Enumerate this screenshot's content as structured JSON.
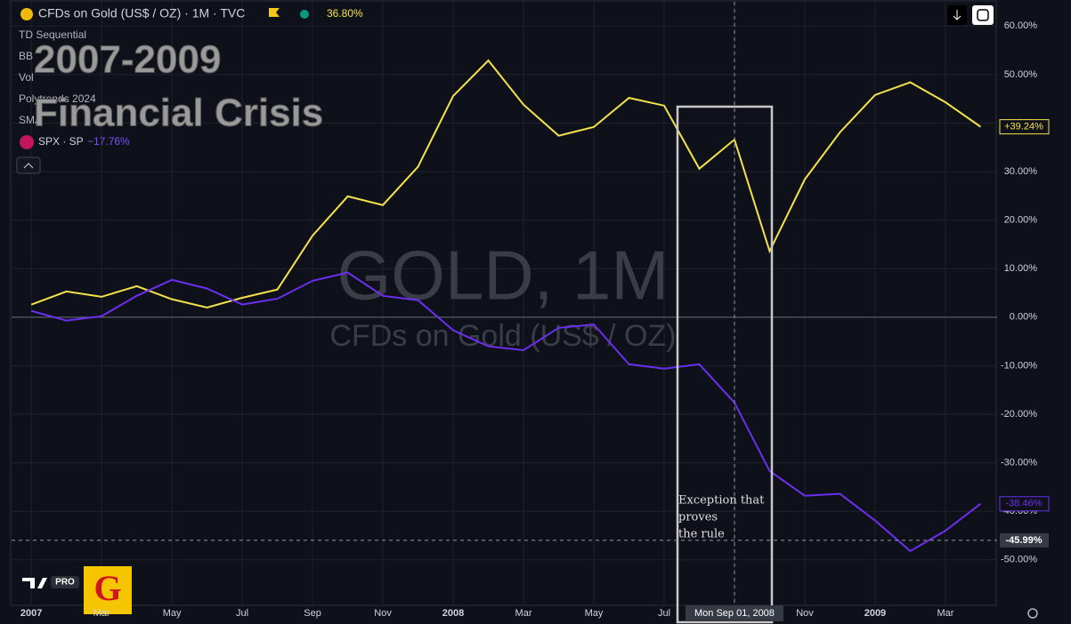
{
  "chart_data": {
    "type": "line",
    "header": {
      "change": "36.80%"
    },
    "indicators": [
      "TD Sequential",
      "BB",
      "Vol",
      "Polytrends 2024",
      "SMA"
    ],
    "overlay_title": [
      "2007-2009",
      "Financial Crisis"
    ],
    "watermark": {
      "symbol": "GOLD, 1M",
      "description": "CFDs on Gold (US$ / OZ)"
    },
    "annotation": [
      "Exception that",
      "proves",
      "the rule"
    ],
    "logo": {
      "badge": "PRO",
      "letter": "G"
    },
    "x": [
      0,
      1,
      2,
      3,
      4,
      5,
      6,
      7,
      8,
      9,
      10,
      11,
      12,
      13,
      14,
      15,
      16,
      17,
      18,
      19,
      20,
      21,
      22,
      23,
      24,
      25,
      26,
      27
    ],
    "xlim": [
      -0.56,
      27.47
    ],
    "xticks": [
      {
        "value": 0,
        "label": "2007"
      },
      {
        "value": 2,
        "label": "Mar"
      },
      {
        "value": 4,
        "label": "May"
      },
      {
        "value": 6,
        "label": "Jul"
      },
      {
        "value": 8,
        "label": "Sep"
      },
      {
        "value": 10,
        "label": "Nov"
      },
      {
        "value": 12,
        "label": "2008"
      },
      {
        "value": 14,
        "label": "Mar"
      },
      {
        "value": 16,
        "label": "May"
      },
      {
        "value": 18,
        "label": "Jul"
      },
      {
        "value": 20,
        "label": "Sep"
      },
      {
        "value": 22,
        "label": "Nov"
      },
      {
        "value": 24,
        "label": "2009"
      },
      {
        "value": 26,
        "label": "Mar"
      }
    ],
    "ylim": [
      -59.2,
      65
    ],
    "yticks": [
      {
        "value": -50,
        "label": "-50.00%"
      },
      {
        "value": -40,
        "label": "-40.00%"
      },
      {
        "value": -30,
        "label": "-30.00%"
      },
      {
        "value": -20,
        "label": "-20.00%"
      },
      {
        "value": -10,
        "label": "-10.00%"
      },
      {
        "value": 0,
        "label": "0.00%"
      },
      {
        "value": 10,
        "label": "10.00%"
      },
      {
        "value": 20,
        "label": "20.00%"
      },
      {
        "value": 30,
        "label": "30.00%"
      },
      {
        "value": 40,
        "label": "40.00%"
      },
      {
        "value": 50,
        "label": "50.00%"
      },
      {
        "value": 60,
        "label": "60.00%"
      }
    ],
    "grid": true,
    "baseline": 0,
    "series": [
      {
        "name": "CFDs on Gold (US$ / OZ) · 1M · TVC",
        "color": "#f5e24a",
        "last_label": "+39.24%",
        "values": [
          2.6,
          5.3,
          4.2,
          6.4,
          3.7,
          2.0,
          4.0,
          5.7,
          16.8,
          24.9,
          23.1,
          31.0,
          45.6,
          52.9,
          43.8,
          37.4,
          39.2,
          45.2,
          43.6,
          30.6,
          36.6,
          13.6,
          28.4,
          38.1,
          45.8,
          48.4,
          44.3,
          39.24
        ]
      },
      {
        "name": "SPX · SP",
        "color": "#6b2ff0",
        "change": "−17.76%",
        "last_label": "-38.46%",
        "values": [
          1.3,
          -0.7,
          0.2,
          4.4,
          7.7,
          5.9,
          2.6,
          3.8,
          7.5,
          9.2,
          4.4,
          3.5,
          -2.7,
          -6.0,
          -6.8,
          -2.2,
          -1.5,
          -9.7,
          -10.6,
          -9.7,
          -17.6,
          -31.7,
          -36.8,
          -36.4,
          -41.9,
          -48.2,
          -44.0,
          -38.46
        ]
      }
    ],
    "crosshair": {
      "x": 20,
      "label": "Mon Sep 01, 2008",
      "y": -45.99,
      "y_label": "-45.99%"
    }
  }
}
